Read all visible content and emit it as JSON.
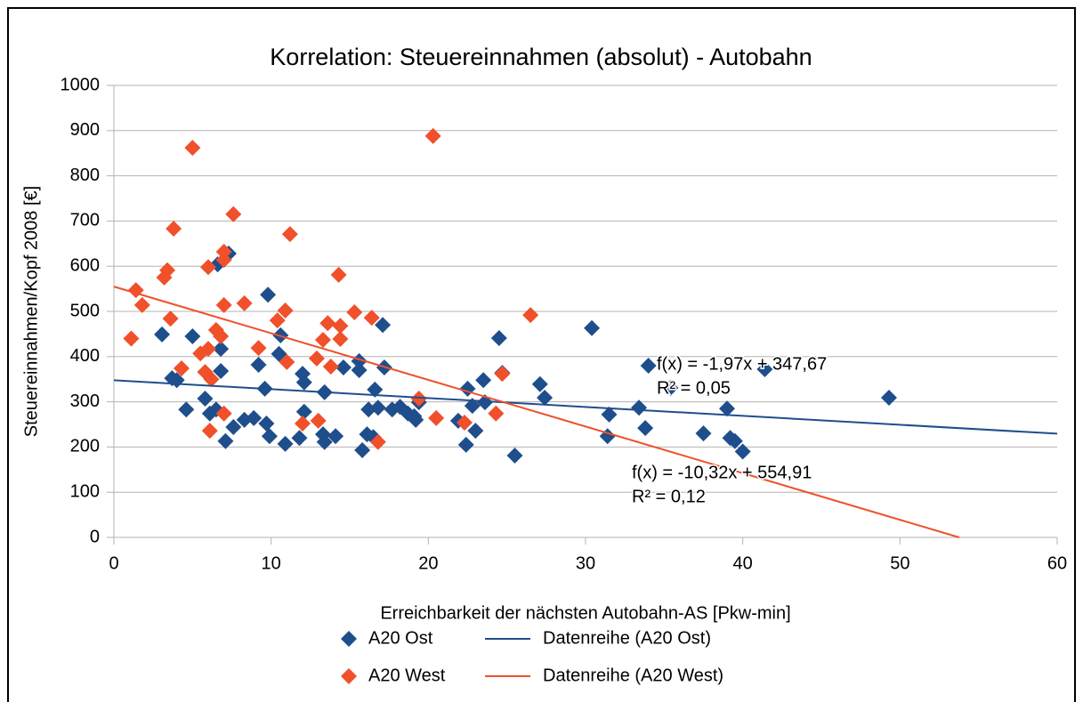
{
  "chart_data": {
    "type": "scatter",
    "title": "Korrelation: Steuereinnahmen (absolut) - Autobahn",
    "xlabel": "Erreichbarkeit der nächsten Autobahn-AS [Pkw-min]",
    "ylabel": "Steuereinnahmen/Kopf 2008 [€]",
    "xlim": [
      0,
      60
    ],
    "ylim": [
      0,
      1000
    ],
    "xticks": [
      0,
      10,
      20,
      30,
      40,
      50,
      60
    ],
    "yticks": [
      0,
      100,
      200,
      300,
      400,
      500,
      600,
      700,
      800,
      900,
      1000
    ],
    "grid": true,
    "legend": "bottom",
    "series": [
      {
        "name": "A20 Ost",
        "color": "#1f4e8c",
        "x": [
          3.06,
          3.7,
          4.0,
          4.6,
          5.0,
          5.8,
          6.1,
          6.5,
          6.6,
          6.8,
          6.8,
          7.1,
          7.6,
          8.3,
          8.9,
          7.3,
          9.2,
          9.6,
          9.7,
          9.9,
          9.8,
          10.6,
          10.5,
          10.9,
          11.8,
          12.0,
          12.1,
          12.1,
          13.3,
          13.4,
          13.4,
          14.1,
          14.6,
          15.6,
          15.6,
          15.8,
          16.1,
          16.2,
          16.5,
          16.6,
          16.8,
          17.1,
          17.2,
          17.7,
          18.2,
          18.7,
          19.1,
          19.4,
          19.2,
          21.9,
          22.5,
          22.4,
          22.8,
          23.0,
          23.5,
          23.6,
          24.5,
          24.7,
          25.5,
          27.1,
          27.4,
          30.4,
          31.5,
          31.4,
          33.4,
          33.8,
          34.0,
          35.4,
          37.5,
          39.0,
          39.2,
          39.5,
          40.0,
          41.4,
          49.3
        ],
        "values": [
          449,
          352,
          348,
          283,
          445,
          307,
          274,
          283,
          604,
          417,
          368,
          213,
          244,
          260,
          264,
          628,
          382,
          329,
          252,
          224,
          537,
          447,
          406,
          207,
          220,
          362,
          343,
          278,
          228,
          321,
          211,
          224,
          376,
          390,
          370,
          193,
          228,
          283,
          222,
          327,
          287,
          470,
          376,
          283,
          289,
          274,
          268,
          299,
          260,
          258,
          329,
          205,
          291,
          236,
          348,
          299,
          441,
          364,
          181,
          339,
          309,
          463,
          272,
          224,
          287,
          242,
          380,
          331,
          230,
          285,
          220,
          213,
          190,
          372,
          309
        ]
      },
      {
        "name": "A20 West",
        "color": "#f0502a",
        "x": [
          1.1,
          1.4,
          1.8,
          3.2,
          3.4,
          3.6,
          3.8,
          4.3,
          5.0,
          5.5,
          6.0,
          5.8,
          6.0,
          6.2,
          6.1,
          6.5,
          6.8,
          7.0,
          7.0,
          7.0,
          7.0,
          7.6,
          8.3,
          9.2,
          10.4,
          10.9,
          11.2,
          11.0,
          12.0,
          12.9,
          13.0,
          13.3,
          13.6,
          13.8,
          14.4,
          14.4,
          14.3,
          15.3,
          16.4,
          16.8,
          19.4,
          20.3,
          20.5,
          22.3,
          24.3,
          24.7,
          26.5
        ],
        "values": [
          440,
          547,
          514,
          575,
          591,
          484,
          683,
          374,
          862,
          407,
          417,
          366,
          598,
          350,
          236,
          459,
          445,
          632,
          614,
          514,
          274,
          715,
          518,
          419,
          480,
          502,
          671,
          388,
          252,
          396,
          258,
          437,
          474,
          378,
          468,
          439,
          581,
          498,
          486,
          211,
          307,
          888,
          264,
          254,
          274,
          362,
          492
        ]
      }
    ],
    "trendlines": [
      {
        "name": "Datenreihe (A20 Ost)",
        "color": "#1f4e8c",
        "x": [
          0,
          60
        ],
        "values": [
          347.67,
          229.47
        ],
        "equation": "f(x) = -1,97x + 347,67",
        "r2": "R² = 0,05"
      },
      {
        "name": "Datenreihe (A20 West)",
        "color": "#f0502a",
        "x": [
          0,
          53.77
        ],
        "values": [
          554.91,
          0
        ],
        "equation": "f(x) = -10,32x + 554,91",
        "r2": "R² = 0,12"
      }
    ]
  }
}
